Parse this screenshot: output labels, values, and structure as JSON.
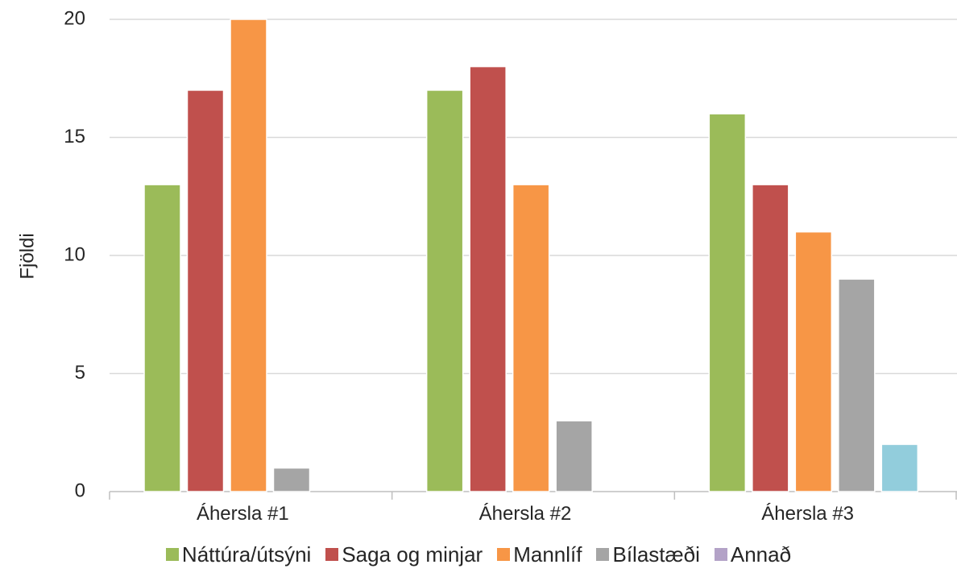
{
  "chart_data": {
    "type": "bar",
    "categories": [
      "Áhersla #1",
      "Áhersla #2",
      "Áhersla #3"
    ],
    "series": [
      {
        "name": "Náttúra/útsýni",
        "color": "#9BBB59",
        "values": [
          13,
          17,
          16
        ]
      },
      {
        "name": "Saga og minjar",
        "color": "#C0504D",
        "values": [
          17,
          18,
          13
        ]
      },
      {
        "name": "Mannlíf",
        "color": "#F79646",
        "values": [
          20,
          13,
          11
        ]
      },
      {
        "name": "Bílastæði",
        "color": "#A5A5A5",
        "values": [
          1,
          3,
          9
        ]
      },
      {
        "name": "Annað",
        "color": "#92CDDC",
        "values": [
          0,
          0,
          2
        ]
      }
    ],
    "legend_colors": [
      "#9BBB59",
      "#C0504D",
      "#F79646",
      "#A5A5A5",
      "#B3A2C7"
    ],
    "ylabel": "Fjöldi",
    "xlabel": "",
    "ylim": [
      0,
      20
    ],
    "yticks": [
      0,
      5,
      10,
      15,
      20
    ],
    "grid": true,
    "legend_position": "bottom"
  }
}
